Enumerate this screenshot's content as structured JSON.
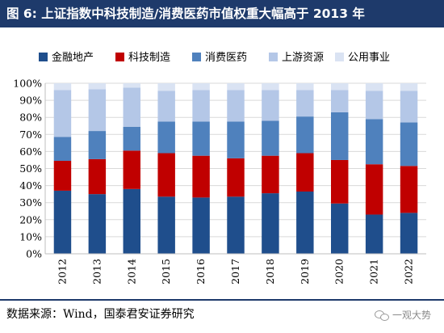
{
  "title": "图 6: 上证指数中科技制造/消费医药市值权重大幅高于 2013 年",
  "source": "数据来源：Wind，国泰君安证券研究",
  "watermark": "一观大势",
  "colors": {
    "title_bg": "#1e3a6b",
    "grid": "#d9d9d9"
  },
  "chart_data": {
    "type": "bar",
    "stacked": true,
    "categories": [
      "2012",
      "2013",
      "2014",
      "2015",
      "2016",
      "2017",
      "2018",
      "2019",
      "2020",
      "2021",
      "2022"
    ],
    "series": [
      {
        "name": "金融地产",
        "color": "#1f4e8c",
        "values": [
          37,
          35,
          38,
          33.5,
          33,
          33.5,
          35.5,
          36.5,
          29.5,
          23,
          24
        ]
      },
      {
        "name": "科技制造",
        "color": "#c00000",
        "values": [
          17.5,
          20.5,
          22.5,
          25.5,
          24.5,
          22.5,
          22,
          22.5,
          25.5,
          29.5,
          27.5
        ]
      },
      {
        "name": "消费医药",
        "color": "#4f81bd",
        "values": [
          14,
          16.5,
          14,
          18.5,
          20,
          21.5,
          20.5,
          21.5,
          28,
          26.5,
          25.5
        ]
      },
      {
        "name": "上游资源",
        "color": "#b4c7e7",
        "values": [
          27.5,
          24.5,
          23,
          18,
          18.5,
          18.5,
          18,
          15.5,
          13,
          16.5,
          18.5
        ]
      },
      {
        "name": "公用事业",
        "color": "#dae3f3",
        "values": [
          4,
          3.5,
          2.5,
          4.5,
          4,
          4,
          4,
          4,
          4,
          4.5,
          4.5
        ]
      }
    ],
    "yticks": [
      "0%",
      "10%",
      "20%",
      "30%",
      "40%",
      "50%",
      "60%",
      "70%",
      "80%",
      "90%",
      "100%"
    ],
    "ylim": [
      0,
      100
    ],
    "xlabel": "",
    "ylabel": "",
    "legend_position": "top",
    "grid": true
  }
}
